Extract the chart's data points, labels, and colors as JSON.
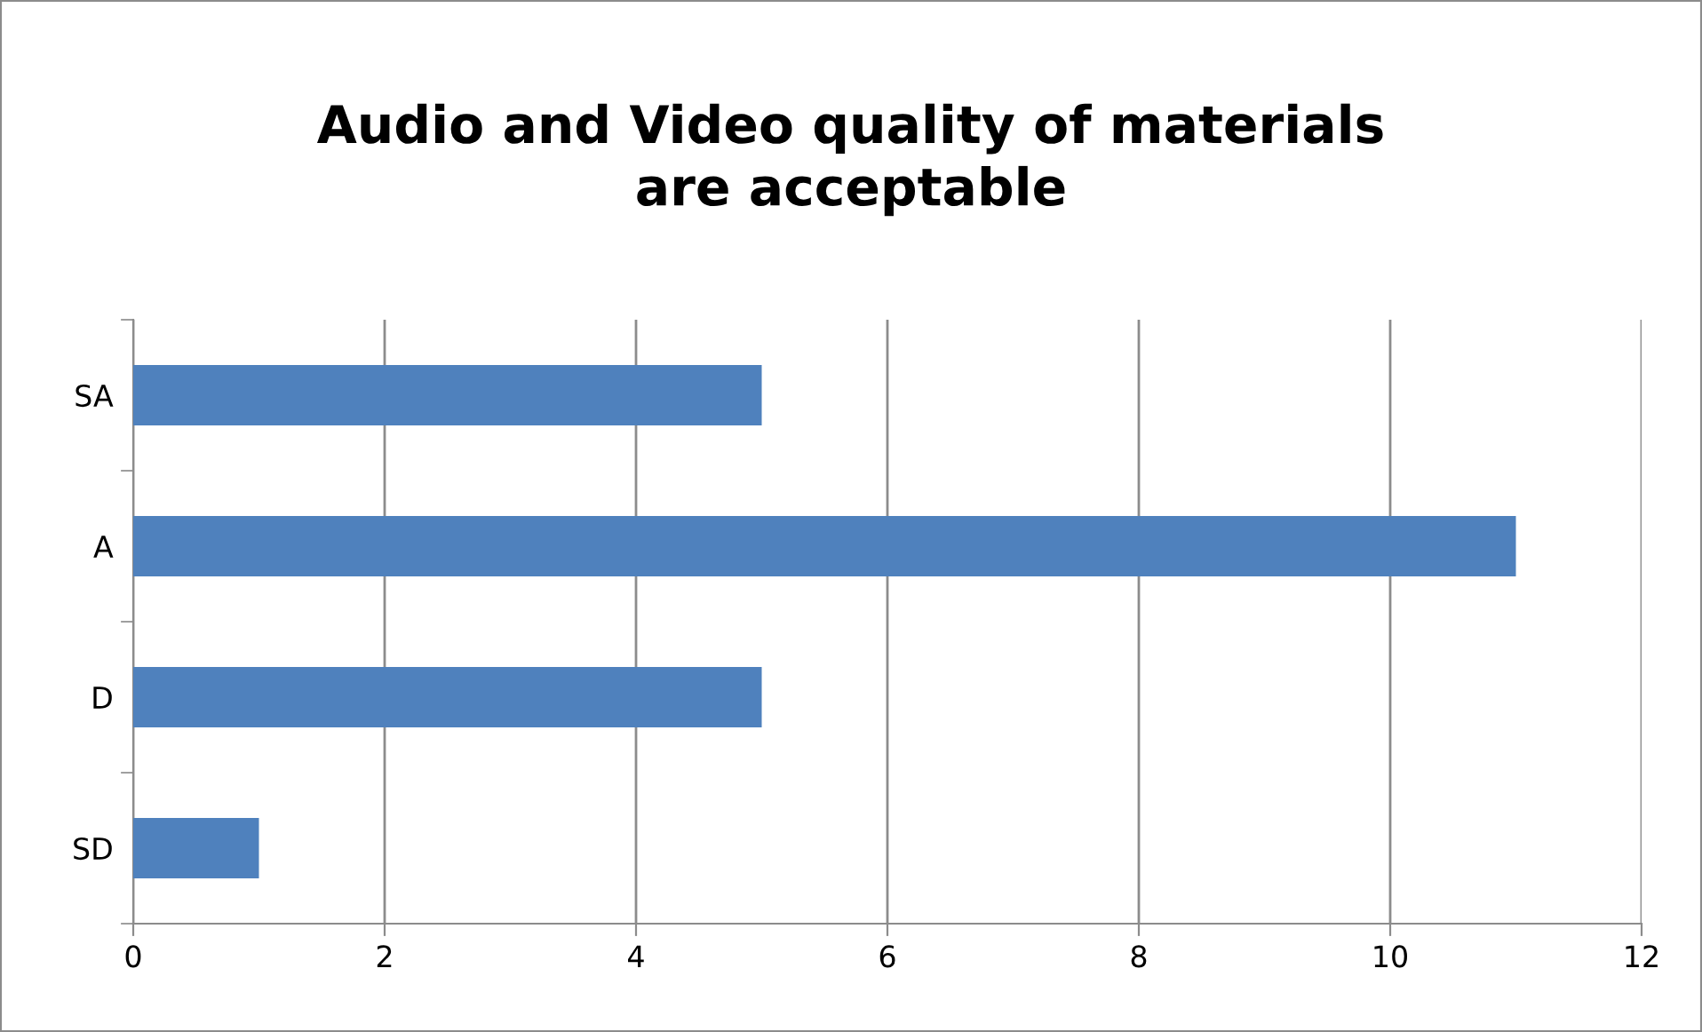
{
  "chart_data": {
    "type": "bar",
    "orientation": "horizontal",
    "title": "Audio and Video quality of materials\nare acceptable",
    "categories": [
      "SA",
      "A",
      "D",
      "SD"
    ],
    "values": [
      5,
      11,
      5,
      1
    ],
    "color": "#4f81bd",
    "xlim": [
      0,
      12
    ],
    "xticks": [
      0,
      2,
      4,
      6,
      8,
      10,
      12
    ],
    "grid": "x",
    "legend": false
  }
}
